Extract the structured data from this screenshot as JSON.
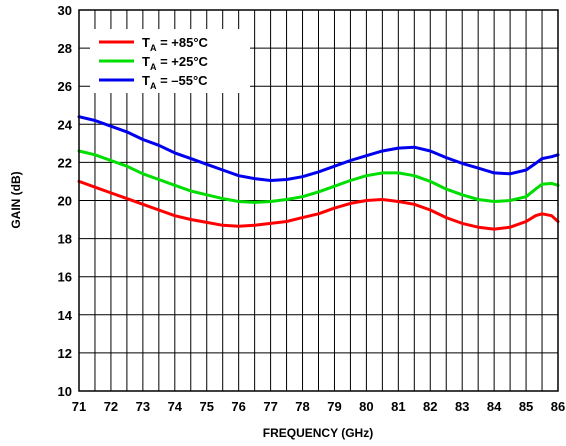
{
  "chart_data": {
    "type": "line",
    "xlabel": "FREQUENCY (GHz)",
    "ylabel": "GAIN (dB)",
    "xlim": [
      71,
      86
    ],
    "ylim": [
      10,
      30
    ],
    "xticks": [
      "71",
      "72",
      "73",
      "74",
      "75",
      "76",
      "77",
      "78",
      "79",
      "80",
      "81",
      "82",
      "83",
      "84",
      "85",
      "86"
    ],
    "yticks": [
      "10",
      "12",
      "14",
      "16",
      "18",
      "20",
      "22",
      "24",
      "26",
      "28",
      "30"
    ],
    "x_grid_step": 0.5,
    "y_grid_step": 2,
    "grid": true,
    "legend_position": "top-left",
    "series": [
      {
        "name": "T_A = +85°C",
        "legend": {
          "main": "T",
          "sub": "A",
          "rest": " = +85°C"
        },
        "color": "#ff0000",
        "x": [
          71,
          71.5,
          72,
          72.5,
          73,
          73.5,
          74,
          74.5,
          75,
          75.5,
          76,
          76.5,
          77,
          77.5,
          78,
          78.5,
          79,
          79.5,
          80,
          80.5,
          81,
          81.5,
          82,
          82.5,
          83,
          83.5,
          84,
          84.5,
          85,
          85.3,
          85.5,
          85.8,
          86
        ],
        "values": [
          21.0,
          20.7,
          20.4,
          20.1,
          19.8,
          19.5,
          19.2,
          19.0,
          18.85,
          18.7,
          18.65,
          18.7,
          18.8,
          18.9,
          19.1,
          19.3,
          19.6,
          19.85,
          20.0,
          20.05,
          19.95,
          19.8,
          19.5,
          19.1,
          18.8,
          18.6,
          18.5,
          18.6,
          18.9,
          19.2,
          19.3,
          19.2,
          18.9
        ]
      },
      {
        "name": "T_A = +25°C",
        "legend": {
          "main": "T",
          "sub": "A",
          "rest": " = +25°C"
        },
        "color": "#00dd00",
        "x": [
          71,
          71.5,
          72,
          72.5,
          73,
          73.5,
          74,
          74.5,
          75,
          75.5,
          76,
          76.5,
          77,
          77.5,
          78,
          78.5,
          79,
          79.5,
          80,
          80.5,
          81,
          81.5,
          82,
          82.5,
          83,
          83.5,
          84,
          84.5,
          85,
          85.3,
          85.5,
          85.8,
          86
        ],
        "values": [
          22.6,
          22.4,
          22.1,
          21.8,
          21.4,
          21.1,
          20.8,
          20.5,
          20.3,
          20.1,
          19.95,
          19.9,
          19.95,
          20.05,
          20.2,
          20.45,
          20.75,
          21.05,
          21.3,
          21.45,
          21.45,
          21.3,
          21.0,
          20.6,
          20.3,
          20.05,
          19.95,
          20.0,
          20.2,
          20.6,
          20.85,
          20.9,
          20.8
        ]
      },
      {
        "name": "T_A = –55°C",
        "legend": {
          "main": "T",
          "sub": "A",
          "rest": " = –55°C"
        },
        "color": "#0000ee",
        "x": [
          71,
          71.5,
          72,
          72.5,
          73,
          73.5,
          74,
          74.5,
          75,
          75.5,
          76,
          76.5,
          77,
          77.5,
          78,
          78.5,
          79,
          79.5,
          80,
          80.5,
          81,
          81.5,
          82,
          82.5,
          83,
          83.5,
          84,
          84.5,
          85,
          85.3,
          85.5,
          85.8,
          86
        ],
        "values": [
          24.4,
          24.2,
          23.9,
          23.6,
          23.2,
          22.9,
          22.5,
          22.2,
          21.9,
          21.6,
          21.3,
          21.15,
          21.05,
          21.1,
          21.25,
          21.5,
          21.8,
          22.1,
          22.35,
          22.6,
          22.75,
          22.8,
          22.6,
          22.25,
          21.95,
          21.7,
          21.45,
          21.4,
          21.6,
          21.95,
          22.2,
          22.3,
          22.4
        ]
      }
    ]
  }
}
